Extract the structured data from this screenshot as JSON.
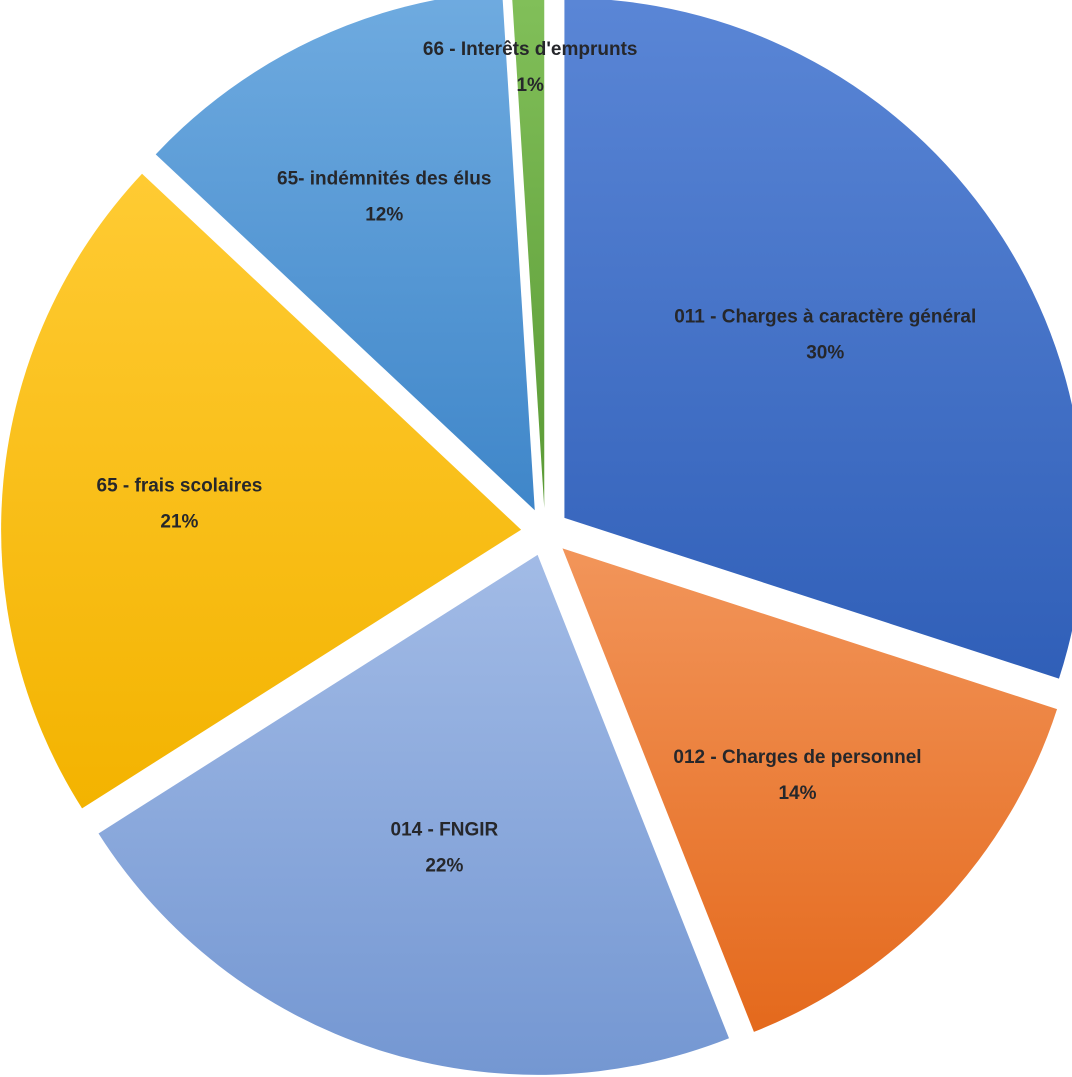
{
  "chart_data": {
    "type": "pie",
    "title": "",
    "slices": [
      {
        "label": "011 - Charges à caractère général",
        "value": 30,
        "value_label": "30%",
        "color": "#4472c4"
      },
      {
        "label": "012 - Charges de personnel",
        "value": 14,
        "value_label": "14%",
        "color": "#ed7d31"
      },
      {
        "label": "014 - FNGIR",
        "value": 22,
        "value_label": "22%",
        "color": "#8faadc"
      },
      {
        "label": "65 - frais scolaires",
        "value": 21,
        "value_label": "21%",
        "color": "#ffc000"
      },
      {
        "label": "65- indémnités des élus",
        "value": 12,
        "value_label": "12%",
        "color": "#5b9bd5"
      },
      {
        "label": "66 - Interêts d'emprunts",
        "value": 1,
        "value_label": "1%",
        "color": "#70ad47"
      }
    ],
    "legend": "none",
    "exploded": true
  }
}
